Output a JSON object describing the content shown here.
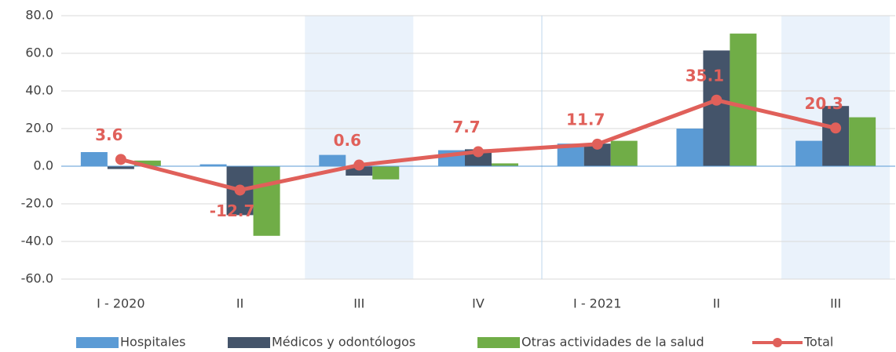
{
  "chart_data": {
    "type": "bar",
    "categories": [
      "I - 2020",
      "II",
      "III",
      "IV",
      "I - 2021",
      "II",
      "III"
    ],
    "series": [
      {
        "name": "Hospitales",
        "color": "#5b9bd5",
        "type": "bar",
        "values": [
          7.5,
          1,
          6,
          8.5,
          12,
          20,
          13.5
        ]
      },
      {
        "name": "Médicos y odontólogos",
        "color": "#44546a",
        "type": "bar",
        "values": [
          -1.5,
          -26,
          -5,
          9,
          12,
          61.5,
          32
        ]
      },
      {
        "name": "Otras actividades de la salud",
        "color": "#70ad47",
        "type": "bar",
        "values": [
          3,
          -37,
          -7,
          1.5,
          13.5,
          70.5,
          26
        ]
      },
      {
        "name": "Total",
        "color": "#e0605a",
        "type": "line",
        "values": [
          3.6,
          -12.7,
          0.6,
          7.7,
          11.7,
          35.1,
          20.3
        ]
      }
    ],
    "ylim": [
      -60,
      80
    ],
    "yticks": [
      {
        "value": -60,
        "label": "-60.0"
      },
      {
        "value": -40,
        "label": "-40.0"
      },
      {
        "value": -20,
        "label": "-20.0"
      },
      {
        "value": 0,
        "label": "0.0"
      },
      {
        "value": 20,
        "label": "20.0"
      },
      {
        "value": 40,
        "label": "40.0"
      },
      {
        "value": 60,
        "label": "60.0"
      },
      {
        "value": 80,
        "label": "80.0"
      }
    ],
    "grid": true,
    "legend": "bottom",
    "highlight_categories": [
      2,
      6
    ]
  }
}
